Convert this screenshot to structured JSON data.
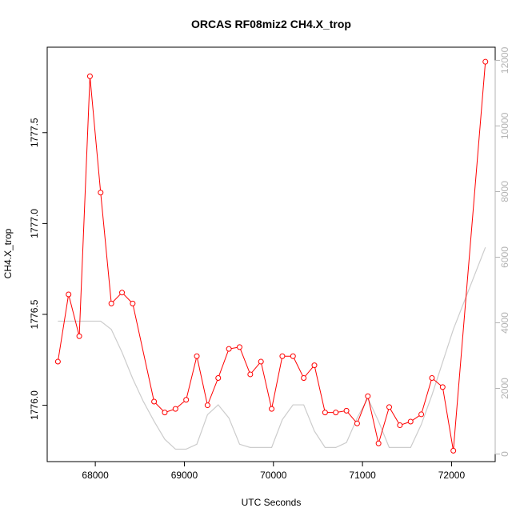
{
  "chart_data": {
    "type": "line",
    "title": "ORCAS RF08miz2 CH4.X_trop",
    "xlabel": "UTC Seconds",
    "ylabel": "CH4.X_trop",
    "xlim": [
      67460,
      72490
    ],
    "ylim": [
      1775.69,
      1777.97
    ],
    "y2lim": [
      -230,
      12400
    ],
    "x_ticks": [
      68000,
      69000,
      70000,
      71000,
      72000
    ],
    "y_ticks": [
      1776.0,
      1776.5,
      1777.0,
      1777.5
    ],
    "y_tick_labels": [
      "1776.0",
      "1776.5",
      "1777.0",
      "1777.5"
    ],
    "y2_ticks": [
      0,
      2000,
      4000,
      6000,
      8000,
      10000,
      12000
    ],
    "colors": {
      "primary": "#ff0000",
      "secondary": "#cccccc",
      "right_axis": "#b3b3b3"
    },
    "grid": false,
    "series": [
      {
        "axis": "left",
        "style": "line+open-circles",
        "x": [
          67580,
          67700,
          67820,
          67940,
          68060,
          68180,
          68300,
          68420,
          68660,
          68780,
          68900,
          69020,
          69140,
          69260,
          69380,
          69500,
          69620,
          69740,
          69860,
          69980,
          70100,
          70220,
          70340,
          70460,
          70580,
          70700,
          70820,
          70940,
          71060,
          71180,
          71300,
          71420,
          71540,
          71660,
          71780,
          71900,
          72020,
          72380
        ],
        "y": [
          1776.24,
          1776.61,
          1776.38,
          1777.81,
          1777.17,
          1776.56,
          1776.62,
          1776.56,
          1776.02,
          1775.96,
          1775.98,
          1776.03,
          1776.27,
          1776.0,
          1776.15,
          1776.31,
          1776.32,
          1776.17,
          1776.24,
          1775.98,
          1776.27,
          1776.27,
          1776.15,
          1776.22,
          1775.96,
          1775.96,
          1775.97,
          1775.9,
          1776.05,
          1775.79,
          1775.99,
          1775.89,
          1775.91,
          1775.95,
          1776.15,
          1776.1,
          1775.75,
          1777.89
        ]
      },
      {
        "axis": "right",
        "style": "line",
        "x": [
          67580,
          67700,
          67820,
          67940,
          68060,
          68180,
          68300,
          68420,
          68540,
          68660,
          68780,
          68900,
          69020,
          69140,
          69260,
          69380,
          69500,
          69620,
          69740,
          69860,
          69980,
          70100,
          70220,
          70340,
          70460,
          70580,
          70700,
          70820,
          70940,
          71060,
          71180,
          71300,
          71420,
          71540,
          71660,
          71780,
          71900,
          72020,
          72380
        ],
        "y": [
          4050,
          4050,
          4050,
          4050,
          4050,
          3800,
          3100,
          2300,
          1600,
          1000,
          450,
          150,
          150,
          300,
          1200,
          1500,
          1100,
          300,
          200,
          200,
          200,
          1050,
          1500,
          1500,
          700,
          200,
          200,
          350,
          1100,
          1700,
          1000,
          200,
          200,
          200,
          900,
          1800,
          2800,
          3800,
          6300
        ]
      }
    ]
  }
}
